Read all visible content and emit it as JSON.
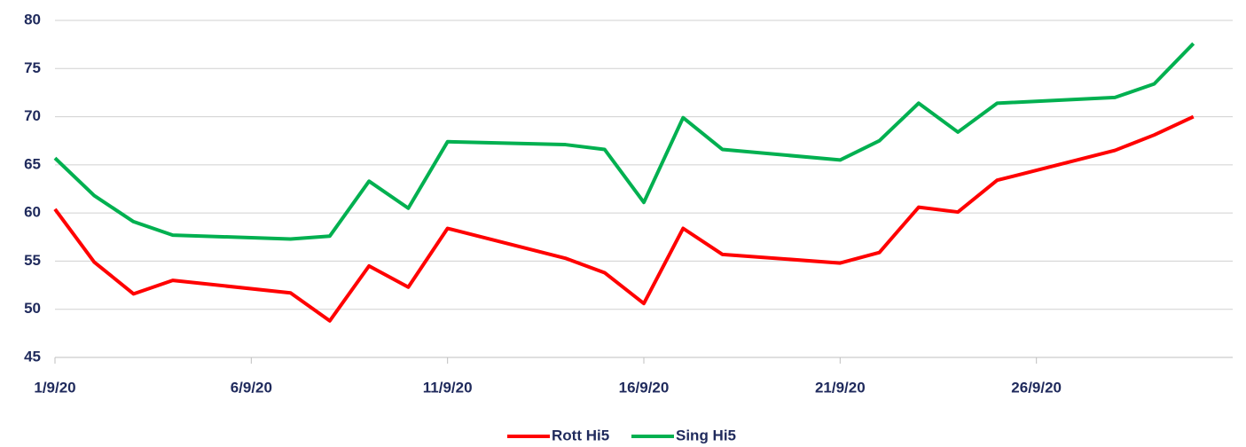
{
  "chart_data": {
    "type": "line",
    "x": [
      1,
      2,
      3,
      4,
      7,
      8,
      9,
      10,
      11,
      14,
      15,
      16,
      17,
      18,
      21,
      22,
      23,
      24,
      25,
      28,
      29,
      30
    ],
    "series": [
      {
        "name": "Rott Hi5",
        "color": "#ff0000",
        "values": [
          60.4,
          54.9,
          51.6,
          53.0,
          51.7,
          48.8,
          54.5,
          52.3,
          58.4,
          55.3,
          53.8,
          50.6,
          58.4,
          55.7,
          54.8,
          55.9,
          60.6,
          60.1,
          63.4,
          66.5,
          68.1,
          70.0
        ]
      },
      {
        "name": "Sing Hi5",
        "color": "#00b050",
        "values": [
          65.7,
          61.8,
          59.1,
          57.7,
          57.3,
          57.6,
          63.3,
          60.5,
          67.4,
          67.1,
          66.6,
          61.1,
          69.9,
          66.6,
          65.5,
          67.5,
          71.4,
          68.4,
          71.4,
          72.0,
          73.4,
          77.6
        ]
      }
    ],
    "xlim": [
      1,
      31
    ],
    "xticks": [
      {
        "value": 1,
        "label": "1/9/20"
      },
      {
        "value": 6,
        "label": "6/9/20"
      },
      {
        "value": 11,
        "label": "11/9/20"
      },
      {
        "value": 16,
        "label": "16/9/20"
      },
      {
        "value": 21,
        "label": "21/9/20"
      },
      {
        "value": 26,
        "label": "26/9/20"
      }
    ],
    "ylim": [
      45,
      80
    ],
    "yticks": [
      45,
      50,
      55,
      60,
      65,
      70,
      75,
      80
    ],
    "grid": true,
    "legend": "bottom"
  }
}
